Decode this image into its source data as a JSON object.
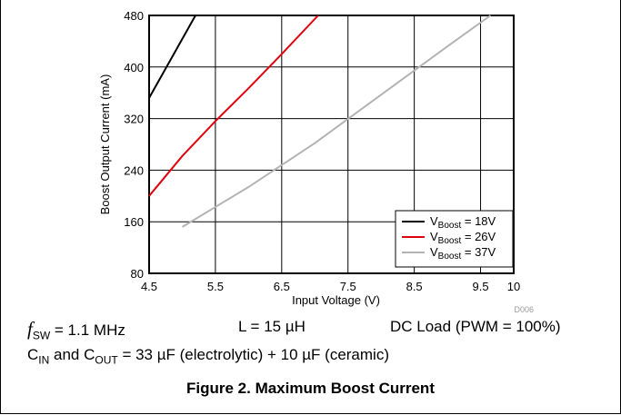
{
  "chart_data": {
    "type": "line",
    "xlabel": "Input Voltage (V)",
    "ylabel": "Boost Output Current (mA)",
    "xlim": [
      4.5,
      10
    ],
    "ylim": [
      80,
      480
    ],
    "x_ticks": [
      "4.5",
      "5.5",
      "6.5",
      "7.5",
      "8.5",
      "9.5",
      "10"
    ],
    "y_ticks": [
      "80",
      "160",
      "240",
      "320",
      "400",
      "480"
    ],
    "grid": true,
    "legend_position": "bottom-right",
    "series": [
      {
        "name_main": "V",
        "name_sub": "Boost",
        "name_suffix": " = 18V",
        "color": "#000000",
        "points": [
          [
            4.5,
            352
          ],
          [
            5.2,
            480
          ]
        ]
      },
      {
        "name_main": "V",
        "name_sub": "Boost",
        "name_suffix": " = 26V",
        "color": "#e0000e",
        "points": [
          [
            4.5,
            200
          ],
          [
            5.0,
            262
          ],
          [
            5.5,
            316
          ],
          [
            6.0,
            367
          ],
          [
            6.5,
            420
          ],
          [
            7.05,
            480
          ]
        ]
      },
      {
        "name_main": "V",
        "name_sub": "Boost",
        "name_suffix": " = 37V",
        "color": "#b3b3b3",
        "points": [
          [
            5.0,
            152
          ],
          [
            6.0,
            214
          ],
          [
            7.0,
            282
          ],
          [
            8.0,
            357
          ],
          [
            9.0,
            432
          ],
          [
            9.65,
            480
          ]
        ]
      }
    ],
    "figure_code": "D006"
  },
  "conditions": {
    "fsw_symbol": "f",
    "fsw_sub": "SW",
    "fsw_value": " = 1.1 MHz",
    "inductor": "L = 15 µH",
    "load": "DC Load (PWM = 100%)",
    "cin_main": "C",
    "cin_sub": "IN",
    "and_text": " and ",
    "cout_main": "C",
    "cout_sub": "OUT",
    "cap_rest": " = 33 µF (electrolytic) + 10 µF (ceramic)"
  },
  "caption": "Figure 2. Maximum Boost Current"
}
